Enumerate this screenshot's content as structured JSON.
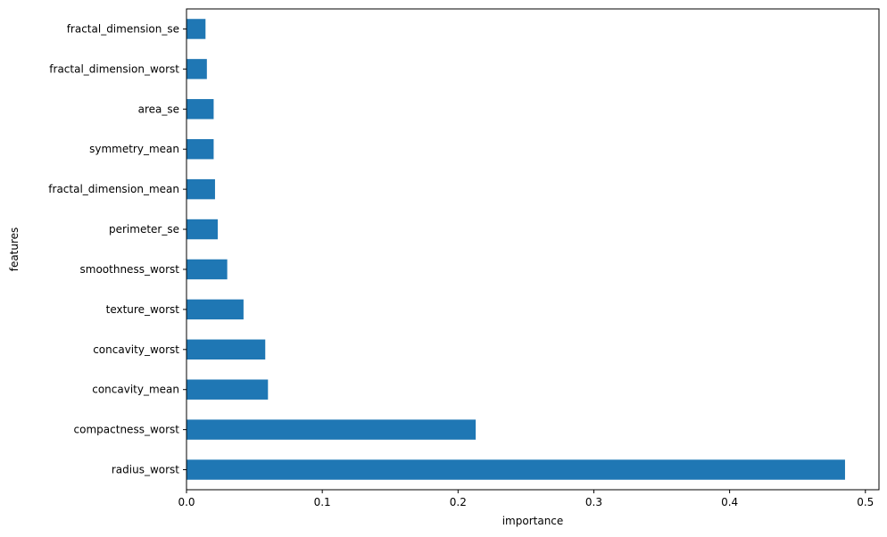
{
  "chart_data": {
    "type": "bar",
    "orientation": "horizontal",
    "title": "",
    "xlabel": "importance",
    "ylabel": "features",
    "categories": [
      "radius_worst",
      "compactness_worst",
      "concavity_mean",
      "concavity_worst",
      "texture_worst",
      "smoothness_worst",
      "perimeter_se",
      "fractal_dimension_mean",
      "symmetry_mean",
      "area_se",
      "fractal_dimension_worst",
      "fractal_dimension_se"
    ],
    "values": [
      0.485,
      0.213,
      0.06,
      0.058,
      0.042,
      0.03,
      0.023,
      0.021,
      0.02,
      0.02,
      0.015,
      0.014
    ],
    "xlim": [
      0,
      0.51
    ],
    "xticks": [
      0.0,
      0.1,
      0.2,
      0.3,
      0.4,
      0.5
    ],
    "xtick_labels": [
      "0.0",
      "0.1",
      "0.2",
      "0.3",
      "0.4",
      "0.5"
    ],
    "bar_color": "#1f77b4",
    "grid": false,
    "legend": "none"
  }
}
